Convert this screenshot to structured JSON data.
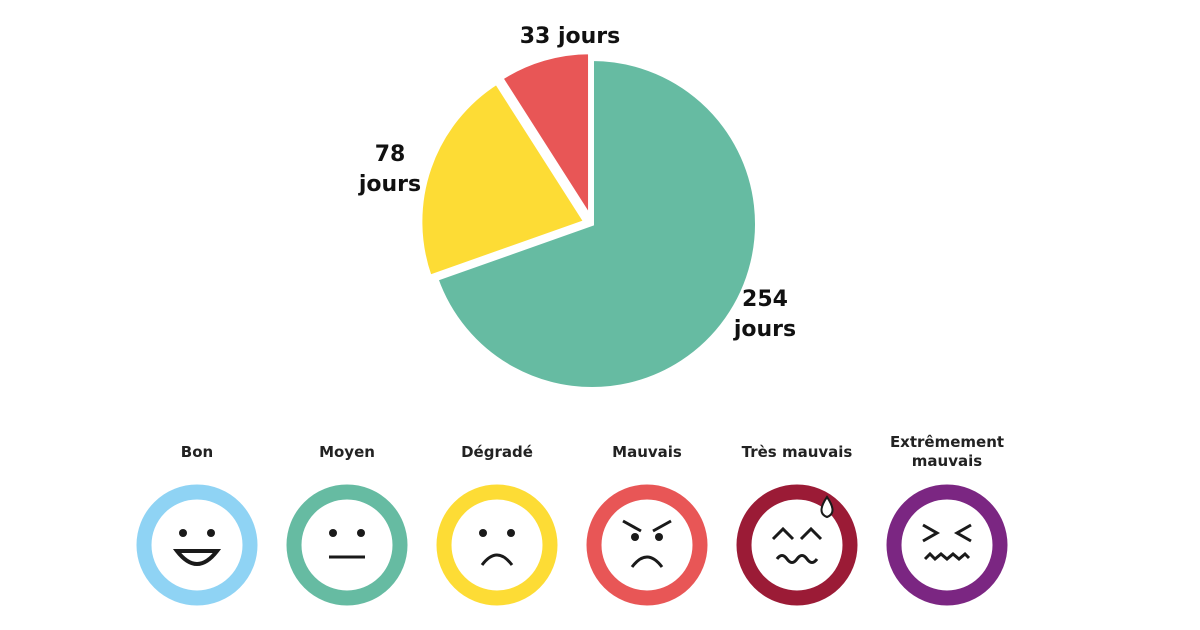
{
  "chart_data": {
    "type": "pie",
    "values": [
      254,
      78,
      33
    ],
    "value_labels": [
      "254 jours",
      "78 jours",
      "33 jours"
    ],
    "colors": [
      "#66bba2",
      "#fddc35",
      "#e85656"
    ],
    "legend": [
      {
        "name": "Bon",
        "color": "#8fd3f4"
      },
      {
        "name": "Moyen",
        "color": "#66bba2"
      },
      {
        "name": "Dégradé",
        "color": "#fddc35"
      },
      {
        "name": "Mauvais",
        "color": "#e85656"
      },
      {
        "name": "Très mauvais",
        "color": "#9b1b36"
      },
      {
        "name": "Extrêmement mauvais",
        "color": "#7b2682"
      }
    ]
  }
}
